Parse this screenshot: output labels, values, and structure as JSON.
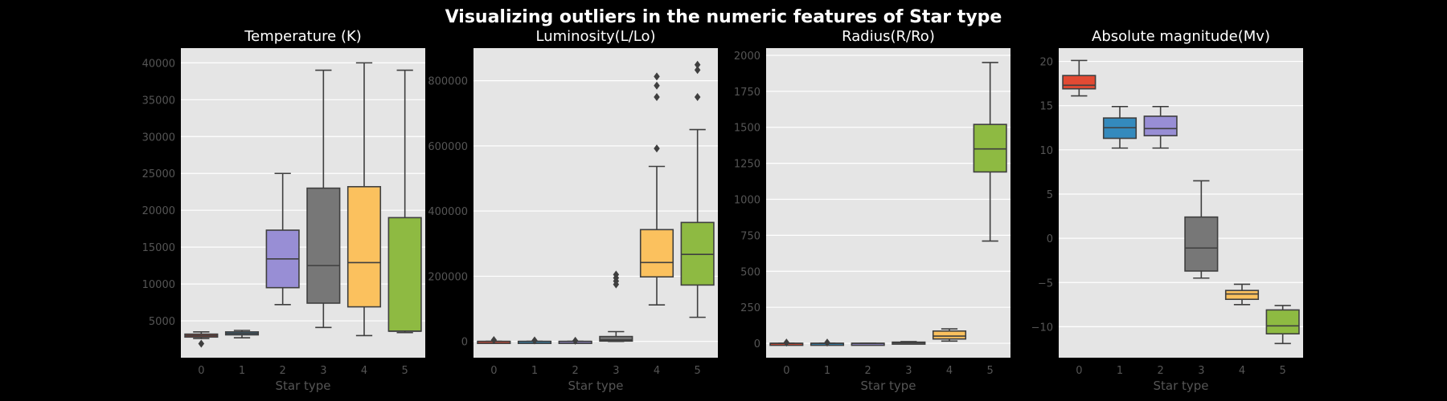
{
  "suptitle": "Visualizing outliers in the numeric features of Star type",
  "colors": [
    "#E24A33",
    "#348ABD",
    "#988ED5",
    "#777777",
    "#FBC15E",
    "#8EBA42"
  ],
  "chart_data": [
    {
      "type": "box",
      "title": "Temperature (K)",
      "xlabel": "Star type",
      "categories": [
        "0",
        "1",
        "2",
        "3",
        "4",
        "5"
      ],
      "ylim": [
        0,
        42000
      ],
      "yticks": [
        5000,
        10000,
        15000,
        20000,
        25000,
        30000,
        35000,
        40000
      ],
      "ytick_labels": [
        "5000",
        "10000",
        "15000",
        "20000",
        "25000",
        "30000",
        "35000",
        "40000"
      ],
      "boxes": [
        {
          "min": 2600,
          "q1": 2800,
          "median": 3000,
          "q3": 3200,
          "max": 3500,
          "outliers": [
            1900
          ]
        },
        {
          "min": 2700,
          "q1": 3100,
          "median": 3300,
          "q3": 3500,
          "max": 3700,
          "outliers": []
        },
        {
          "min": 7200,
          "q1": 9500,
          "median": 13400,
          "q3": 17300,
          "max": 25000,
          "outliers": []
        },
        {
          "min": 4100,
          "q1": 7400,
          "median": 12500,
          "q3": 23000,
          "max": 39000,
          "outliers": []
        },
        {
          "min": 3000,
          "q1": 6900,
          "median": 12900,
          "q3": 23200,
          "max": 40000,
          "outliers": []
        },
        {
          "min": 3400,
          "q1": 3600,
          "median": 3600,
          "q3": 19000,
          "max": 39000,
          "outliers": []
        }
      ]
    },
    {
      "type": "box",
      "title": "Luminosity(L/Lo)",
      "xlabel": "Star type",
      "categories": [
        "0",
        "1",
        "2",
        "3",
        "4",
        "5"
      ],
      "ylim": [
        -50000,
        900000
      ],
      "yticks": [
        0,
        200000,
        400000,
        600000,
        800000
      ],
      "ytick_labels": [
        "0",
        "200000",
        "400000",
        "600000",
        "800000"
      ],
      "boxes": [
        {
          "min": 0,
          "q1": 0,
          "median": 0,
          "q3": 0,
          "max": 0,
          "outliers": [
            4000
          ]
        },
        {
          "min": 0,
          "q1": 0,
          "median": 0,
          "q3": 0,
          "max": 0,
          "outliers": [
            3000
          ]
        },
        {
          "min": 0,
          "q1": 0,
          "median": 0,
          "q3": 0,
          "max": 0,
          "outliers": [
            2000
          ]
        },
        {
          "min": 0,
          "q1": 1000,
          "median": 5000,
          "q3": 15000,
          "max": 30000,
          "outliers": [
            175000,
            185000,
            195000,
            205000
          ]
        },
        {
          "min": 112000,
          "q1": 198000,
          "median": 242000,
          "q3": 343000,
          "max": 537000,
          "outliers": [
            592000,
            750000,
            785000,
            813000
          ]
        },
        {
          "min": 74000,
          "q1": 173000,
          "median": 267000,
          "q3": 365000,
          "max": 650000,
          "outliers": [
            750000,
            833000,
            849000
          ]
        }
      ]
    },
    {
      "type": "box",
      "title": "Radius(R/Ro)",
      "xlabel": "Star type",
      "categories": [
        "0",
        "1",
        "2",
        "3",
        "4",
        "5"
      ],
      "ylim": [
        -100,
        2050
      ],
      "yticks": [
        0,
        250,
        500,
        750,
        1000,
        1250,
        1500,
        1750,
        2000
      ],
      "ytick_labels": [
        "0",
        "250",
        "500",
        "750",
        "1000",
        "1250",
        "1500",
        "1750",
        "2000"
      ],
      "boxes": [
        {
          "min": 0,
          "q1": 0,
          "median": 0,
          "q3": 0,
          "max": 0,
          "outliers": [
            5
          ]
        },
        {
          "min": 0,
          "q1": 0,
          "median": 0,
          "q3": 0,
          "max": 0,
          "outliers": [
            5
          ]
        },
        {
          "min": 0,
          "q1": 0,
          "median": 0,
          "q3": 0,
          "max": 0,
          "outliers": []
        },
        {
          "min": 0,
          "q1": 2,
          "median": 5,
          "q3": 8,
          "max": 12,
          "outliers": []
        },
        {
          "min": 15,
          "q1": 30,
          "median": 50,
          "q3": 85,
          "max": 100,
          "outliers": []
        },
        {
          "min": 710,
          "q1": 1190,
          "median": 1350,
          "q3": 1520,
          "max": 1950,
          "outliers": []
        }
      ]
    },
    {
      "type": "box",
      "title": "Absolute magnitude(Mv)",
      "xlabel": "Star type",
      "categories": [
        "0",
        "1",
        "2",
        "3",
        "4",
        "5"
      ],
      "ylim": [
        -13.5,
        21.5
      ],
      "yticks": [
        -10,
        -5,
        0,
        5,
        10,
        15,
        20
      ],
      "ytick_labels": [
        "−10",
        "−5",
        "0",
        "5",
        "10",
        "15",
        "20"
      ],
      "boxes": [
        {
          "min": 16.1,
          "q1": 16.9,
          "median": 17.3,
          "q3": 18.4,
          "max": 20.1,
          "outliers": []
        },
        {
          "min": 10.2,
          "q1": 11.3,
          "median": 12.5,
          "q3": 13.6,
          "max": 14.9,
          "outliers": []
        },
        {
          "min": 10.2,
          "q1": 11.6,
          "median": 12.4,
          "q3": 13.8,
          "max": 14.9,
          "outliers": []
        },
        {
          "min": -4.5,
          "q1": -3.7,
          "median": -1.1,
          "q3": 2.4,
          "max": 6.5,
          "outliers": []
        },
        {
          "min": -7.5,
          "q1": -6.9,
          "median": -6.3,
          "q3": -5.9,
          "max": -5.2,
          "outliers": []
        },
        {
          "min": -11.9,
          "q1": -10.8,
          "median": -9.9,
          "q3": -8.1,
          "max": -7.6,
          "outliers": []
        }
      ]
    }
  ]
}
